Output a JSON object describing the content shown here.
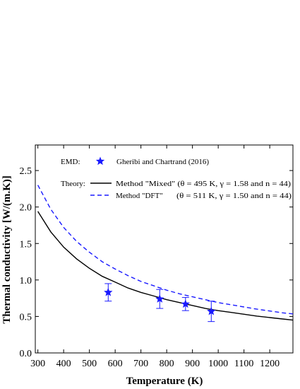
{
  "chart_data": {
    "type": "line",
    "xlabel": "Temperature (K)",
    "ylabel": "Thermal conductivity [W/(m.K)]",
    "xlim": [
      290,
      1290
    ],
    "ylim": [
      0,
      2.85
    ],
    "x_ticks": [
      300,
      400,
      500,
      600,
      700,
      800,
      900,
      1000,
      1100,
      1200
    ],
    "y_ticks": [
      0.0,
      0.5,
      1.0,
      1.5,
      2.0,
      2.5
    ],
    "y_tick_labels": [
      "0.0",
      "0.5",
      "1.0",
      "1.5",
      "2.0",
      "2.5"
    ],
    "grid": false,
    "legend_placement": "top",
    "series": [
      {
        "name": "Method \"Mixed\" (θ = 495 K, γ = 1.58 and n = 44)",
        "style": "solid",
        "color": "#000000",
        "x": [
          300,
          350,
          400,
          450,
          500,
          550,
          600,
          650,
          700,
          750,
          800,
          850,
          900,
          950,
          1000,
          1050,
          1100,
          1150,
          1200,
          1250,
          1290
        ],
        "y": [
          1.94,
          1.66,
          1.45,
          1.29,
          1.16,
          1.05,
          0.97,
          0.89,
          0.83,
          0.78,
          0.73,
          0.69,
          0.65,
          0.61,
          0.58,
          0.555,
          0.53,
          0.505,
          0.485,
          0.465,
          0.45
        ]
      },
      {
        "name": "Method \"DFT\"",
        "params": "(θ = 511 K, γ = 1.50 and n = 44)",
        "style": "dashed",
        "color": "#1a1aff",
        "x": [
          300,
          350,
          400,
          450,
          500,
          550,
          600,
          650,
          700,
          750,
          800,
          850,
          900,
          950,
          1000,
          1050,
          1100,
          1150,
          1200,
          1250,
          1290
        ],
        "y": [
          2.3,
          1.97,
          1.72,
          1.53,
          1.38,
          1.25,
          1.15,
          1.06,
          0.98,
          0.92,
          0.86,
          0.81,
          0.77,
          0.73,
          0.69,
          0.66,
          0.63,
          0.6,
          0.575,
          0.55,
          0.535
        ]
      },
      {
        "name": "Gheribi and Chartrand (2016)",
        "group_label": "EMD:",
        "style": "markers",
        "marker": "star",
        "color": "#1a1aff",
        "x": [
          573,
          773,
          873,
          973
        ],
        "y": [
          0.83,
          0.74,
          0.67,
          0.57
        ],
        "error": [
          0.12,
          0.13,
          0.09,
          0.14
        ]
      }
    ],
    "legend": {
      "emd_label": "EMD:",
      "theory_label": "Theory:"
    }
  }
}
